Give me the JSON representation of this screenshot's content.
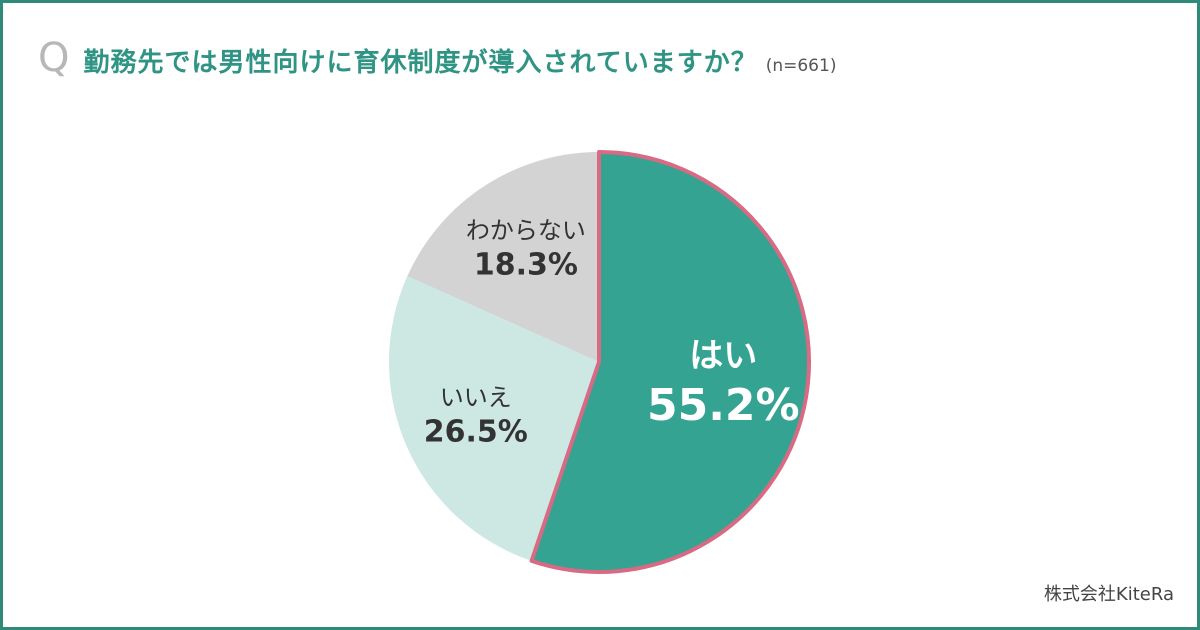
{
  "header": {
    "q_mark": "Q",
    "question": "勤務先では男性向けに育休制度が導入されていますか？",
    "sample_size": "(n=661)"
  },
  "chart_data": {
    "type": "pie",
    "start_angle_deg": 0,
    "direction": "clockwise",
    "slices": [
      {
        "label": "はい",
        "value": 55.2,
        "value_label": "55.2%",
        "color": "#35a391",
        "stroke": "#d86a84",
        "text_color": "#ffffff"
      },
      {
        "label": "いいえ",
        "value": 26.5,
        "value_label": "26.5%",
        "color": "#cde8e3",
        "stroke": "#ffffff",
        "text_color": "#333333"
      },
      {
        "label": "わからない",
        "value": 18.3,
        "value_label": "18.3%",
        "color": "#d3d3d3",
        "stroke": "#ffffff",
        "text_color": "#333333"
      }
    ]
  },
  "footer": {
    "credit": "株式会社KiteRa"
  }
}
